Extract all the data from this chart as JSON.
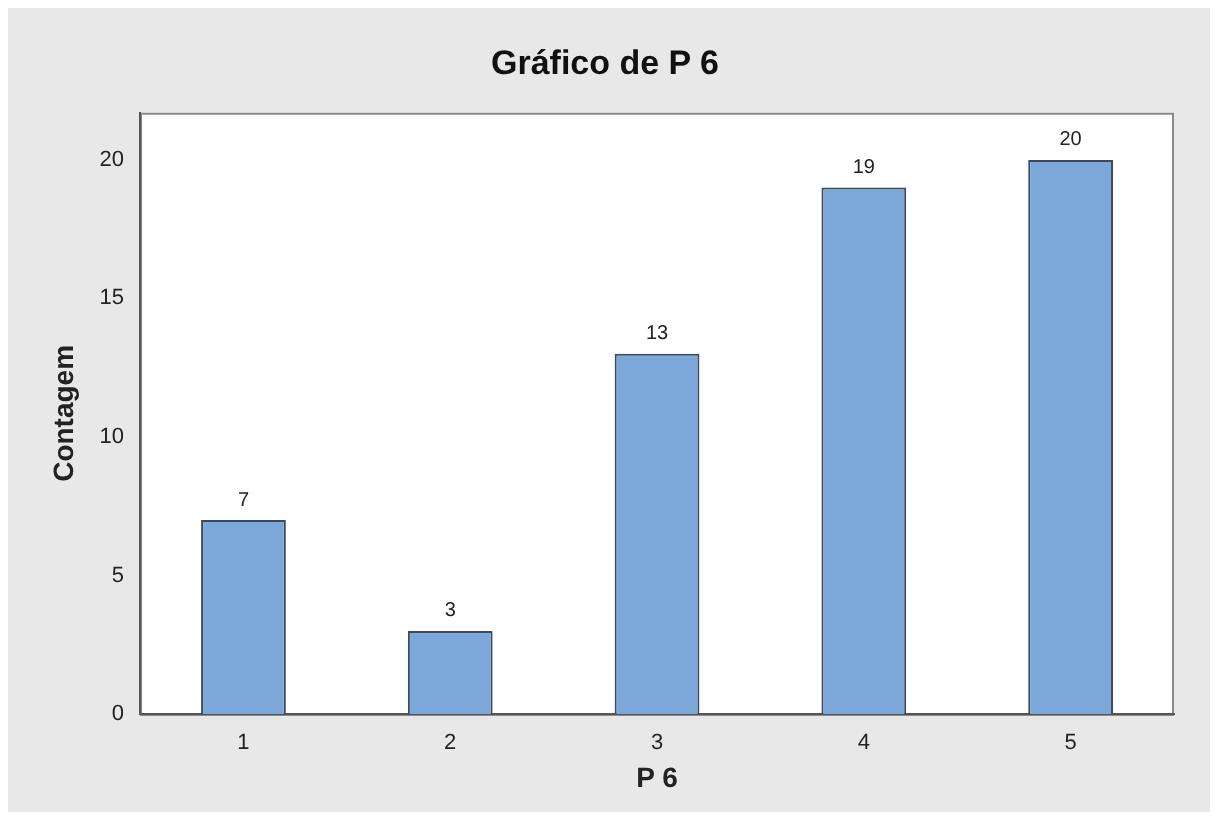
{
  "chart_data": {
    "type": "bar",
    "title": "Gráfico de P 6",
    "xlabel": "P 6",
    "ylabel": "Contagem",
    "categories": [
      "1",
      "2",
      "3",
      "4",
      "5"
    ],
    "values": [
      7,
      3,
      13,
      19,
      20
    ],
    "color": "#7ba7d9",
    "ylim": [
      0,
      21.7
    ],
    "yticks": [
      0,
      5,
      10,
      15,
      20
    ],
    "grid": false,
    "data_labels": true,
    "legend": false
  }
}
